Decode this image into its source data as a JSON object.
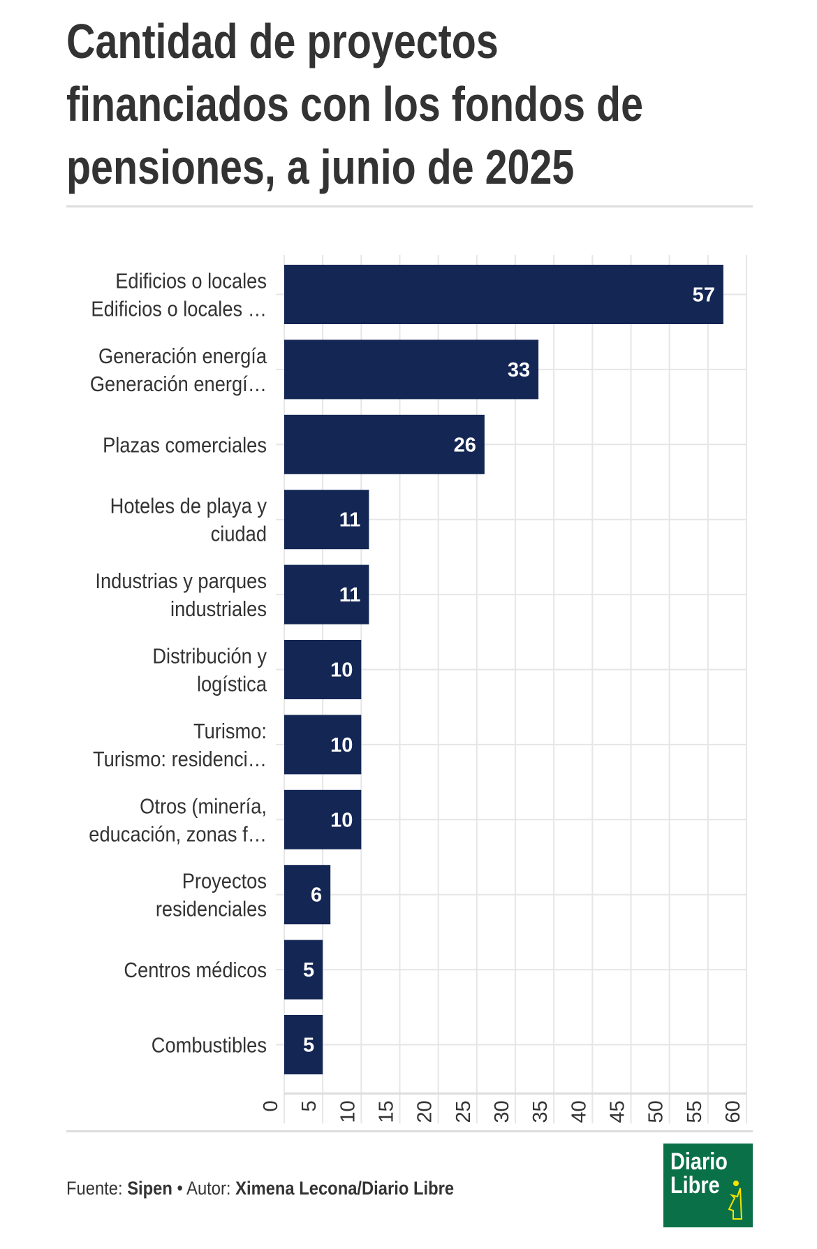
{
  "title": "Cantidad de proyectos financiados con los fondos de pensiones, a junio de 2025",
  "footer": {
    "source_label": "Fuente:",
    "source": "Sipen",
    "sep": "•",
    "author_label": "Autor:",
    "author": "Ximena Lecona/Diario Libre"
  },
  "logo": {
    "line1": "Diario",
    "line2": "Libre"
  },
  "colors": {
    "bar": "#142654",
    "grid": "#e6e6e6",
    "logo": "#0a7047"
  },
  "chart_data": {
    "type": "bar",
    "orientation": "horizontal",
    "categories": [
      [
        "Edificios o locales",
        "Edificios o locales …"
      ],
      [
        "Generación energía",
        "Generación energí…"
      ],
      [
        "Plazas comerciales"
      ],
      [
        "Hoteles de playa y",
        "ciudad"
      ],
      [
        "Industrias y parques",
        "industriales"
      ],
      [
        "Distribución y",
        "logística"
      ],
      [
        "Turismo:",
        "Turismo: residenci…"
      ],
      [
        "Otros (minería,",
        "educación, zonas f…"
      ],
      [
        "Proyectos",
        "residenciales"
      ],
      [
        "Centros médicos"
      ],
      [
        "Combustibles"
      ]
    ],
    "values": [
      57,
      33,
      26,
      11,
      11,
      10,
      10,
      10,
      6,
      5,
      5
    ],
    "xlim": [
      0,
      60
    ],
    "xticks": [
      "0",
      "5",
      "10",
      "15",
      "20",
      "25",
      "30",
      "35",
      "40",
      "45",
      "50",
      "55",
      "60"
    ],
    "grid": true
  }
}
